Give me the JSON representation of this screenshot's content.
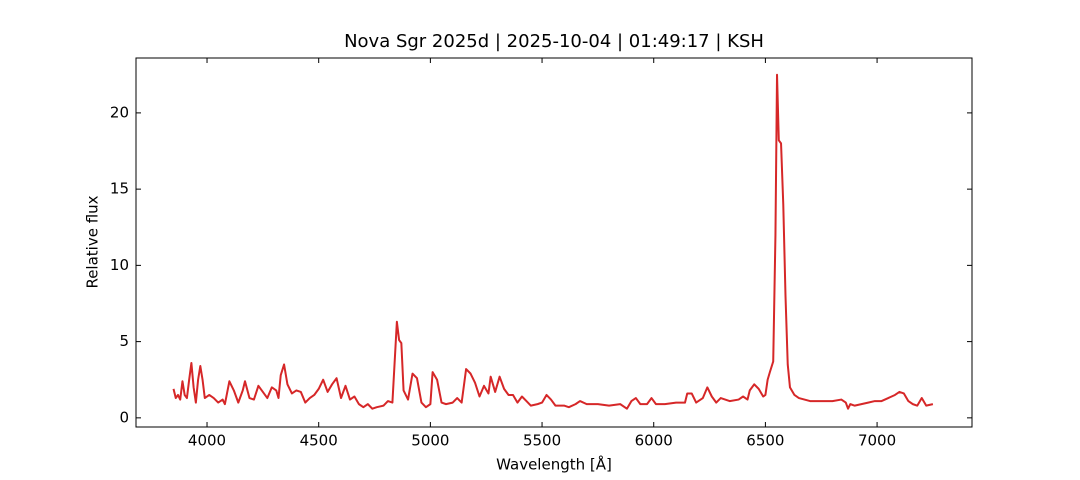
{
  "chart_data": {
    "type": "line",
    "title": "Nova Sgr 2025d | 2025-10-04 | 01:49:17 | KSH",
    "x_label": "Wavelength [Å]",
    "y_label": "Relative flux",
    "color": "#d62728",
    "xlim": [
      3682,
      7425
    ],
    "ylim": [
      -0.6,
      23.6
    ],
    "xticks": [
      4000,
      4500,
      5000,
      5500,
      6000,
      6500,
      7000
    ],
    "yticks": [
      0,
      5,
      10,
      15,
      20
    ],
    "x": [
      3850,
      3860,
      3870,
      3880,
      3890,
      3900,
      3910,
      3920,
      3930,
      3940,
      3950,
      3960,
      3970,
      3980,
      3990,
      4010,
      4030,
      4050,
      4070,
      4080,
      4100,
      4120,
      4140,
      4160,
      4170,
      4190,
      4210,
      4230,
      4250,
      4270,
      4290,
      4310,
      4320,
      4330,
      4345,
      4360,
      4380,
      4400,
      4420,
      4440,
      4460,
      4480,
      4500,
      4520,
      4540,
      4560,
      4580,
      4600,
      4620,
      4640,
      4660,
      4680,
      4700,
      4720,
      4740,
      4760,
      4790,
      4810,
      4830,
      4850,
      4860,
      4870,
      4880,
      4900,
      4920,
      4940,
      4960,
      4980,
      5000,
      5010,
      5030,
      5050,
      5070,
      5100,
      5120,
      5140,
      5160,
      5180,
      5200,
      5220,
      5240,
      5260,
      5270,
      5290,
      5310,
      5330,
      5350,
      5370,
      5390,
      5410,
      5430,
      5450,
      5480,
      5500,
      5520,
      5540,
      5560,
      5600,
      5620,
      5650,
      5670,
      5700,
      5750,
      5800,
      5850,
      5880,
      5900,
      5920,
      5940,
      5970,
      5990,
      6010,
      6050,
      6100,
      6140,
      6150,
      6170,
      6190,
      6220,
      6240,
      6260,
      6280,
      6300,
      6340,
      6380,
      6400,
      6420,
      6430,
      6450,
      6470,
      6490,
      6500,
      6510,
      6520,
      6535,
      6545,
      6552,
      6560,
      6570,
      6580,
      6590,
      6600,
      6610,
      6630,
      6650,
      6700,
      6750,
      6800,
      6840,
      6860,
      6870,
      6880,
      6900,
      6930,
      6960,
      6990,
      7020,
      7050,
      7080,
      7100,
      7120,
      7140,
      7160,
      7180,
      7200,
      7220,
      7250
    ],
    "values": [
      1.9,
      1.3,
      1.5,
      1.2,
      2.4,
      1.5,
      1.3,
      2.5,
      3.6,
      2.0,
      1.0,
      2.5,
      3.4,
      2.5,
      1.3,
      1.5,
      1.3,
      1.0,
      1.2,
      0.9,
      2.4,
      1.8,
      1.0,
      1.8,
      2.4,
      1.3,
      1.2,
      2.1,
      1.7,
      1.3,
      2.0,
      1.8,
      1.3,
      2.8,
      3.5,
      2.2,
      1.6,
      1.8,
      1.7,
      1.0,
      1.3,
      1.5,
      1.9,
      2.5,
      1.7,
      2.2,
      2.6,
      1.3,
      2.1,
      1.2,
      1.4,
      0.9,
      0.7,
      0.9,
      0.6,
      0.7,
      0.8,
      1.1,
      1.0,
      6.3,
      5.1,
      4.9,
      1.8,
      1.2,
      2.9,
      2.6,
      1.0,
      0.7,
      0.9,
      3.0,
      2.5,
      1.0,
      0.9,
      1.0,
      1.3,
      1.0,
      3.2,
      2.9,
      2.3,
      1.4,
      2.1,
      1.6,
      2.7,
      1.7,
      2.7,
      1.9,
      1.5,
      1.5,
      1.0,
      1.4,
      1.1,
      0.8,
      0.9,
      1.0,
      1.5,
      1.2,
      0.8,
      0.8,
      0.7,
      0.9,
      1.1,
      0.9,
      0.9,
      0.8,
      0.9,
      0.6,
      1.1,
      1.3,
      0.9,
      0.9,
      1.3,
      0.9,
      0.9,
      1.0,
      1.0,
      1.6,
      1.6,
      1.0,
      1.3,
      2.0,
      1.4,
      1.0,
      1.3,
      1.1,
      1.2,
      1.4,
      1.2,
      1.8,
      2.2,
      1.9,
      1.4,
      1.5,
      2.5,
      3.0,
      3.7,
      12,
      22.5,
      18.2,
      18.0,
      14,
      8,
      3.5,
      2.0,
      1.5,
      1.3,
      1.1,
      1.1,
      1.1,
      1.2,
      1.0,
      0.6,
      0.9,
      0.8,
      0.9,
      1.0,
      1.1,
      1.1,
      1.3,
      1.5,
      1.7,
      1.6,
      1.1,
      0.9,
      0.8,
      1.3,
      0.8,
      0.9
    ]
  }
}
